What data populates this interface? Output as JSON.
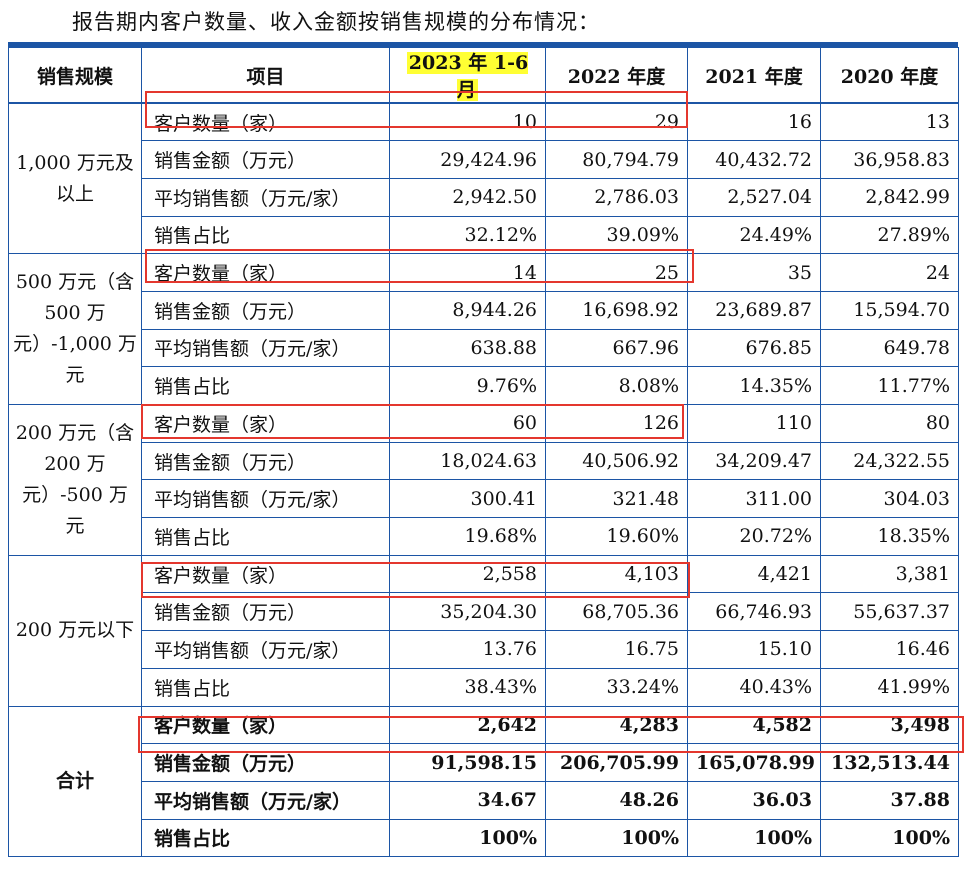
{
  "caption": "报告期内客户数量、收入金额按销售规模的分布情况：",
  "header": {
    "scale": "销售规模",
    "item": "项目",
    "periods": [
      "2023 年 1-6 月",
      "2022 年度",
      "2021 年度",
      "2020 年度"
    ]
  },
  "groups": [
    {
      "scale": "1,000 万元及以上",
      "rows": [
        {
          "item": "客户数量（家）",
          "values": [
            "10",
            "29",
            "16",
            "13"
          ]
        },
        {
          "item": "销售金额（万元）",
          "values": [
            "29,424.96",
            "80,794.79",
            "40,432.72",
            "36,958.83"
          ]
        },
        {
          "item": "平均销售额（万元/家）",
          "values": [
            "2,942.50",
            "2,786.03",
            "2,527.04",
            "2,842.99"
          ]
        },
        {
          "item": "销售占比",
          "values": [
            "32.12%",
            "39.09%",
            "24.49%",
            "27.89%"
          ]
        }
      ]
    },
    {
      "scale": "500 万元（含 500 万元）-1,000 万元",
      "rows": [
        {
          "item": "客户数量（家）",
          "values": [
            "14",
            "25",
            "35",
            "24"
          ]
        },
        {
          "item": "销售金额（万元）",
          "values": [
            "8,944.26",
            "16,698.92",
            "23,689.87",
            "15,594.70"
          ]
        },
        {
          "item": "平均销售额（万元/家）",
          "values": [
            "638.88",
            "667.96",
            "676.85",
            "649.78"
          ]
        },
        {
          "item": "销售占比",
          "values": [
            "9.76%",
            "8.08%",
            "14.35%",
            "11.77%"
          ]
        }
      ]
    },
    {
      "scale": "200 万元（含 200 万元）-500 万元",
      "rows": [
        {
          "item": "客户数量（家）",
          "values": [
            "60",
            "126",
            "110",
            "80"
          ]
        },
        {
          "item": "销售金额（万元）",
          "values": [
            "18,024.63",
            "40,506.92",
            "34,209.47",
            "24,322.55"
          ]
        },
        {
          "item": "平均销售额（万元/家）",
          "values": [
            "300.41",
            "321.48",
            "311.00",
            "304.03"
          ]
        },
        {
          "item": "销售占比",
          "values": [
            "19.68%",
            "19.60%",
            "20.72%",
            "18.35%"
          ]
        }
      ]
    },
    {
      "scale": "200 万元以下",
      "rows": [
        {
          "item": "客户数量（家）",
          "values": [
            "2,558",
            "4,103",
            "4,421",
            "3,381"
          ]
        },
        {
          "item": "销售金额（万元）",
          "values": [
            "35,204.30",
            "68,705.36",
            "66,746.93",
            "55,637.37"
          ]
        },
        {
          "item": "平均销售额（万元/家）",
          "values": [
            "13.76",
            "16.75",
            "15.10",
            "16.46"
          ]
        },
        {
          "item": "销售占比",
          "values": [
            "38.43%",
            "33.24%",
            "40.43%",
            "41.99%"
          ]
        }
      ]
    },
    {
      "scale": "合计",
      "rows": [
        {
          "item": "客户数量（家）",
          "values": [
            "2,642",
            "4,283",
            "4,582",
            "3,498"
          ]
        },
        {
          "item": "销售金额（万元）",
          "values": [
            "91,598.15",
            "206,705.99",
            "165,078.99",
            "132,513.44"
          ]
        },
        {
          "item": "平均销售额（万元/家）",
          "values": [
            "34.67",
            "48.26",
            "36.03",
            "37.88"
          ]
        },
        {
          "item": "销售占比",
          "values": [
            "100%",
            "100%",
            "100%",
            "100%"
          ]
        }
      ]
    }
  ],
  "colors": {
    "border": "#1c55a5",
    "highlight": "#ffff33",
    "annotation_box": "#e4372e"
  }
}
